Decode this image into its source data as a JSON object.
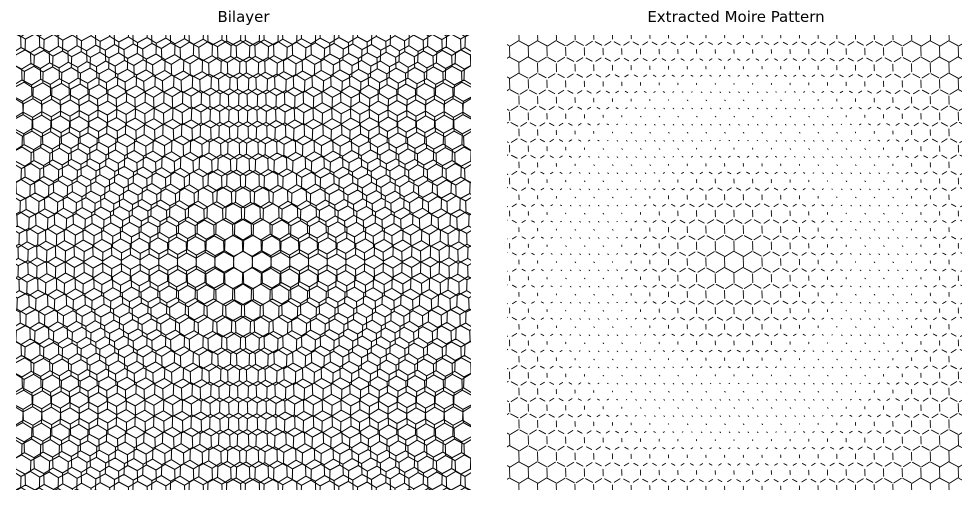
{
  "figure": {
    "panels": [
      {
        "title": "Bilayer"
      },
      {
        "title": "Extracted Moire Pattern"
      }
    ]
  },
  "colors": {
    "background": "#ffffff",
    "lines": "#000000"
  }
}
